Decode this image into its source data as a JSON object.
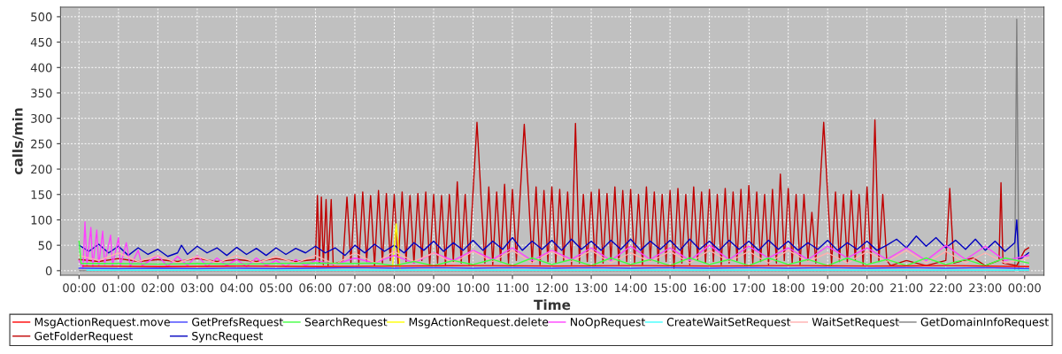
{
  "chart_data": {
    "type": "line",
    "xlabel": "Time",
    "ylabel": "calls/min",
    "xlim": [
      -0.47,
      24.49
    ],
    "ylim": [
      -9,
      519
    ],
    "xticks": [
      {
        "value": 0,
        "label": "00:00"
      },
      {
        "value": 1,
        "label": "01:00"
      },
      {
        "value": 2,
        "label": "02:00"
      },
      {
        "value": 3,
        "label": "03:00"
      },
      {
        "value": 4,
        "label": "04:00"
      },
      {
        "value": 5,
        "label": "05:00"
      },
      {
        "value": 6,
        "label": "06:00"
      },
      {
        "value": 7,
        "label": "07:00"
      },
      {
        "value": 8,
        "label": "08:00"
      },
      {
        "value": 9,
        "label": "09:00"
      },
      {
        "value": 10,
        "label": "10:00"
      },
      {
        "value": 11,
        "label": "11:00"
      },
      {
        "value": 12,
        "label": "12:00"
      },
      {
        "value": 13,
        "label": "13:00"
      },
      {
        "value": 14,
        "label": "14:00"
      },
      {
        "value": 15,
        "label": "15:00"
      },
      {
        "value": 16,
        "label": "16:00"
      },
      {
        "value": 17,
        "label": "17:00"
      },
      {
        "value": 18,
        "label": "18:00"
      },
      {
        "value": 19,
        "label": "19:00"
      },
      {
        "value": 20,
        "label": "20:00"
      },
      {
        "value": 21,
        "label": "21:00"
      },
      {
        "value": 22,
        "label": "22:00"
      },
      {
        "value": 23,
        "label": "23:00"
      },
      {
        "value": 24,
        "label": "00:00"
      }
    ],
    "yticks": [
      0,
      50,
      100,
      150,
      200,
      250,
      300,
      350,
      400,
      450,
      500
    ],
    "grid": true,
    "legend": "bottom",
    "marker": "none",
    "line_style": "solid",
    "series": [
      {
        "name": "MsgActionRequest.move",
        "color": "#ff0000",
        "x": [
          0.1,
          2.1,
          4.1,
          6.1,
          8.1,
          10.1,
          12.1,
          14.1,
          16.1,
          18.1,
          20.1,
          22.1,
          24.1
        ],
        "values": [
          9,
          8,
          9,
          8,
          9,
          10,
          9,
          10,
          9,
          10,
          9,
          10,
          8
        ]
      },
      {
        "name": "GetPrefsRequest",
        "color": "#4040ff",
        "x": [
          0,
          1,
          2,
          3,
          4,
          5,
          6,
          7,
          8,
          9,
          10,
          11,
          12,
          13,
          14,
          15,
          16,
          17,
          18,
          19,
          20,
          21,
          22,
          23,
          24.1
        ],
        "values": [
          5,
          4,
          5,
          4,
          5,
          4,
          5,
          6,
          5,
          6,
          5,
          6,
          5,
          6,
          5,
          6,
          5,
          6,
          5,
          6,
          5,
          6,
          5,
          6,
          4
        ]
      },
      {
        "name": "SearchRequest",
        "color": "#40ff40",
        "x": [
          0,
          0.05,
          1,
          2,
          3,
          4,
          5,
          6,
          7,
          7.5,
          8,
          8.5,
          9,
          9.5,
          10,
          10.5,
          11,
          11.5,
          12,
          12.5,
          13,
          13.5,
          14,
          14.5,
          15,
          15.5,
          16,
          16.5,
          17,
          17.5,
          18,
          18.5,
          19,
          19.5,
          20,
          20.5,
          21,
          21.5,
          22,
          22.5,
          23,
          23.5,
          24.1
        ],
        "values": [
          58,
          14,
          14,
          13,
          14,
          13,
          14,
          15,
          14,
          15,
          10,
          18,
          10,
          20,
          12,
          22,
          10,
          25,
          12,
          22,
          10,
          25,
          12,
          22,
          10,
          25,
          12,
          22,
          10,
          25,
          12,
          22,
          10,
          25,
          12,
          22,
          10,
          25,
          12,
          22,
          10,
          25,
          15
        ]
      },
      {
        "name": "MsgActionRequest.delete",
        "color": "#ffff00",
        "x": [
          7.95,
          8.05,
          8.15
        ],
        "values": [
          3,
          92,
          3
        ]
      },
      {
        "name": "NoOpRequest",
        "color": "#ff40ff",
        "x": [
          0,
          0.1,
          0.15,
          0.2,
          0.3,
          0.35,
          0.45,
          0.5,
          0.6,
          0.65,
          0.8,
          0.85,
          1.0,
          1.05,
          1.2,
          1.3,
          1.5,
          1.6,
          2,
          2.25,
          2.5,
          2.75,
          3,
          3.25,
          3.5,
          3.75,
          4,
          4.25,
          4.5,
          4.75,
          5,
          5.25,
          5.5,
          5.75,
          6,
          6.5,
          7,
          7.5,
          8,
          8.5,
          9,
          9.5,
          10,
          10.5,
          11,
          11.5,
          12,
          12.5,
          13,
          13.5,
          14,
          14.5,
          15,
          15.5,
          16,
          16.5,
          17,
          17.5,
          18,
          18.5,
          19,
          19.5,
          20,
          20.5,
          21,
          21.5,
          22,
          22.5,
          23,
          23.5,
          24.1
        ],
        "values": [
          20,
          5,
          96,
          10,
          85,
          8,
          80,
          10,
          78,
          12,
          70,
          10,
          65,
          10,
          55,
          8,
          40,
          10,
          30,
          8,
          28,
          10,
          30,
          8,
          25,
          10,
          22,
          8,
          25,
          10,
          20,
          8,
          22,
          10,
          20,
          12,
          25,
          15,
          30,
          15,
          35,
          20,
          40,
          22,
          45,
          20,
          40,
          22,
          45,
          20,
          48,
          22,
          45,
          20,
          50,
          22,
          48,
          25,
          45,
          22,
          48,
          25,
          45,
          22,
          45,
          20,
          50,
          22,
          48,
          20,
          30
        ]
      },
      {
        "name": "CreateWaitSetRequest",
        "color": "#40ffff",
        "x": [
          0.2,
          4.2,
          8.2,
          12.2,
          16.2,
          20.2,
          24.1
        ],
        "values": [
          1,
          1,
          1,
          1,
          1,
          1,
          1
        ]
      },
      {
        "name": "WaitSetRequest",
        "color": "#ffafaf",
        "x": [
          0,
          0.5,
          1,
          1.5,
          2,
          2.5,
          3,
          3.5,
          4,
          4.5,
          5,
          5.5,
          6,
          6.5,
          7,
          7.5,
          8,
          8.5,
          9,
          9.5,
          10,
          10.5,
          11,
          11.5,
          12,
          12.5,
          13,
          13.5,
          14,
          14.5,
          15,
          15.5,
          16,
          16.5,
          17,
          17.5,
          18,
          18.5,
          19,
          19.5,
          20,
          20.5,
          21,
          21.5,
          22,
          22.5,
          23,
          23.5,
          24.1
        ],
        "values": [
          30,
          20,
          35,
          18,
          30,
          15,
          28,
          15,
          30,
          15,
          28,
          15,
          30,
          12,
          35,
          15,
          38,
          18,
          35,
          15,
          38,
          18,
          40,
          15,
          38,
          18,
          40,
          15,
          35,
          18,
          38,
          15,
          40,
          18,
          38,
          15,
          40,
          18,
          35,
          15,
          38,
          18,
          40,
          15,
          38,
          15,
          35,
          15,
          25
        ]
      },
      {
        "name": "GetDomainInfoRequest",
        "color": "#808080",
        "x": [
          0,
          23.75,
          23.8,
          23.85,
          24.1
        ],
        "values": [
          0,
          0,
          495,
          0,
          0
        ]
      },
      {
        "name": "GetFolderRequest",
        "color": "#c00000",
        "x": [
          0,
          0.5,
          1,
          1.5,
          2,
          2.5,
          3,
          3.5,
          4,
          4.5,
          5,
          5.5,
          6.0,
          6.05,
          6.1,
          6.15,
          6.2,
          6.27,
          6.32,
          6.4,
          6.45,
          6.7,
          6.8,
          6.9,
          7.0,
          7.1,
          7.2,
          7.3,
          7.4,
          7.5,
          7.6,
          7.7,
          7.8,
          7.9,
          8.0,
          8.1,
          8.2,
          8.3,
          8.4,
          8.5,
          8.6,
          8.7,
          8.8,
          8.9,
          9.0,
          9.1,
          9.2,
          9.3,
          9.4,
          9.5,
          9.6,
          9.7,
          9.8,
          9.9,
          10.0,
          10.1,
          10.2,
          10.3,
          10.4,
          10.5,
          10.6,
          10.7,
          10.8,
          10.9,
          11.0,
          11.1,
          11.2,
          11.3,
          11.4,
          11.5,
          11.6,
          11.7,
          11.8,
          11.9,
          12.0,
          12.1,
          12.2,
          12.3,
          12.4,
          12.5,
          12.6,
          12.7,
          12.8,
          12.9,
          13.0,
          13.1,
          13.2,
          13.3,
          13.4,
          13.5,
          13.6,
          13.7,
          13.8,
          13.9,
          14.0,
          14.1,
          14.2,
          14.3,
          14.4,
          14.5,
          14.6,
          14.7,
          14.8,
          14.9,
          15.0,
          15.1,
          15.2,
          15.3,
          15.4,
          15.5,
          15.6,
          15.7,
          15.8,
          15.9,
          16.0,
          16.1,
          16.2,
          16.3,
          16.4,
          16.5,
          16.6,
          16.7,
          16.8,
          16.9,
          17.0,
          17.1,
          17.2,
          17.3,
          17.4,
          17.5,
          17.6,
          17.7,
          17.8,
          17.9,
          18.0,
          18.1,
          18.2,
          18.3,
          18.4,
          18.5,
          18.6,
          18.7,
          18.8,
          18.9,
          19.0,
          19.1,
          19.2,
          19.3,
          19.4,
          19.5,
          19.6,
          19.7,
          19.8,
          19.9,
          20.0,
          20.1,
          20.2,
          20.3,
          20.4,
          20.5,
          20.6,
          21.0,
          21.5,
          22.0,
          22.1,
          22.2,
          22.7,
          23.0,
          23.35,
          23.4,
          23.45,
          23.8,
          24.0,
          24.1
        ],
        "values": [
          22,
          18,
          24,
          18,
          22,
          18,
          24,
          18,
          22,
          18,
          24,
          18,
          22,
          148,
          15,
          145,
          12,
          140,
          10,
          140,
          12,
          20,
          145,
          15,
          150,
          12,
          155,
          18,
          148,
          10,
          158,
          15,
          152,
          20,
          150,
          12,
          155,
          18,
          148,
          15,
          152,
          20,
          155,
          10,
          150,
          15,
          148,
          12,
          150,
          18,
          175,
          15,
          150,
          12,
          155,
          292,
          150,
          15,
          165,
          12,
          155,
          18,
          170,
          15,
          160,
          20,
          155,
          288,
          160,
          15,
          165,
          12,
          158,
          18,
          165,
          15,
          160,
          20,
          155,
          12,
          290,
          15,
          150,
          18,
          155,
          12,
          160,
          15,
          152,
          20,
          165,
          12,
          158,
          18,
          160,
          15,
          150,
          12,
          165,
          20,
          155,
          15,
          150,
          18,
          158,
          5,
          162,
          15,
          150,
          12,
          165,
          20,
          155,
          15,
          160,
          18,
          150,
          12,
          162,
          15,
          155,
          20,
          160,
          12,
          168,
          15,
          155,
          18,
          150,
          12,
          160,
          15,
          190,
          20,
          162,
          15,
          150,
          12,
          150,
          20,
          115,
          15,
          158,
          292,
          150,
          12,
          155,
          18,
          150,
          15,
          158,
          20,
          150,
          12,
          165,
          15,
          297,
          18,
          150,
          20,
          10,
          20,
          10,
          20,
          162,
          15,
          25,
          10,
          20,
          173,
          15,
          10,
          40,
          45
        ]
      },
      {
        "name": "SyncRequest",
        "color": "#0000c0",
        "x": [
          0,
          0.25,
          0.5,
          0.75,
          1,
          1.25,
          1.5,
          1.75,
          2,
          2.25,
          2.5,
          2.6,
          2.75,
          3,
          3.25,
          3.5,
          3.75,
          4,
          4.25,
          4.5,
          4.75,
          5,
          5.25,
          5.5,
          5.75,
          6,
          6.25,
          6.5,
          6.75,
          7,
          7.25,
          7.5,
          7.75,
          8,
          8.25,
          8.5,
          8.75,
          9,
          9.25,
          9.5,
          9.75,
          10,
          10.25,
          10.5,
          10.75,
          11,
          11.25,
          11.5,
          11.75,
          12,
          12.25,
          12.5,
          12.75,
          13,
          13.25,
          13.5,
          13.75,
          14,
          14.25,
          14.5,
          14.75,
          15,
          15.25,
          15.5,
          15.75,
          16,
          16.25,
          16.5,
          16.75,
          17,
          17.25,
          17.5,
          17.75,
          18,
          18.25,
          18.5,
          18.75,
          19,
          19.25,
          19.5,
          19.75,
          20,
          20.25,
          20.5,
          20.75,
          21,
          21.25,
          21.5,
          21.75,
          22,
          22.25,
          22.5,
          22.75,
          23,
          23.25,
          23.5,
          23.75,
          23.8,
          23.85,
          24.1
        ],
        "values": [
          50,
          38,
          52,
          35,
          48,
          30,
          45,
          32,
          42,
          28,
          35,
          50,
          32,
          48,
          35,
          45,
          30,
          46,
          32,
          44,
          30,
          45,
          32,
          44,
          35,
          48,
          35,
          45,
          30,
          50,
          35,
          52,
          38,
          50,
          35,
          55,
          40,
          58,
          38,
          55,
          40,
          60,
          40,
          58,
          42,
          65,
          40,
          58,
          42,
          60,
          40,
          62,
          42,
          58,
          40,
          60,
          42,
          62,
          40,
          58,
          42,
          60,
          40,
          62,
          42,
          58,
          40,
          60,
          42,
          58,
          40,
          60,
          42,
          58,
          40,
          55,
          42,
          60,
          40,
          55,
          42,
          58,
          40,
          50,
          62,
          45,
          68,
          48,
          65,
          45,
          60,
          42,
          62,
          40,
          58,
          38,
          55,
          100,
          20,
          35
        ]
      }
    ]
  }
}
